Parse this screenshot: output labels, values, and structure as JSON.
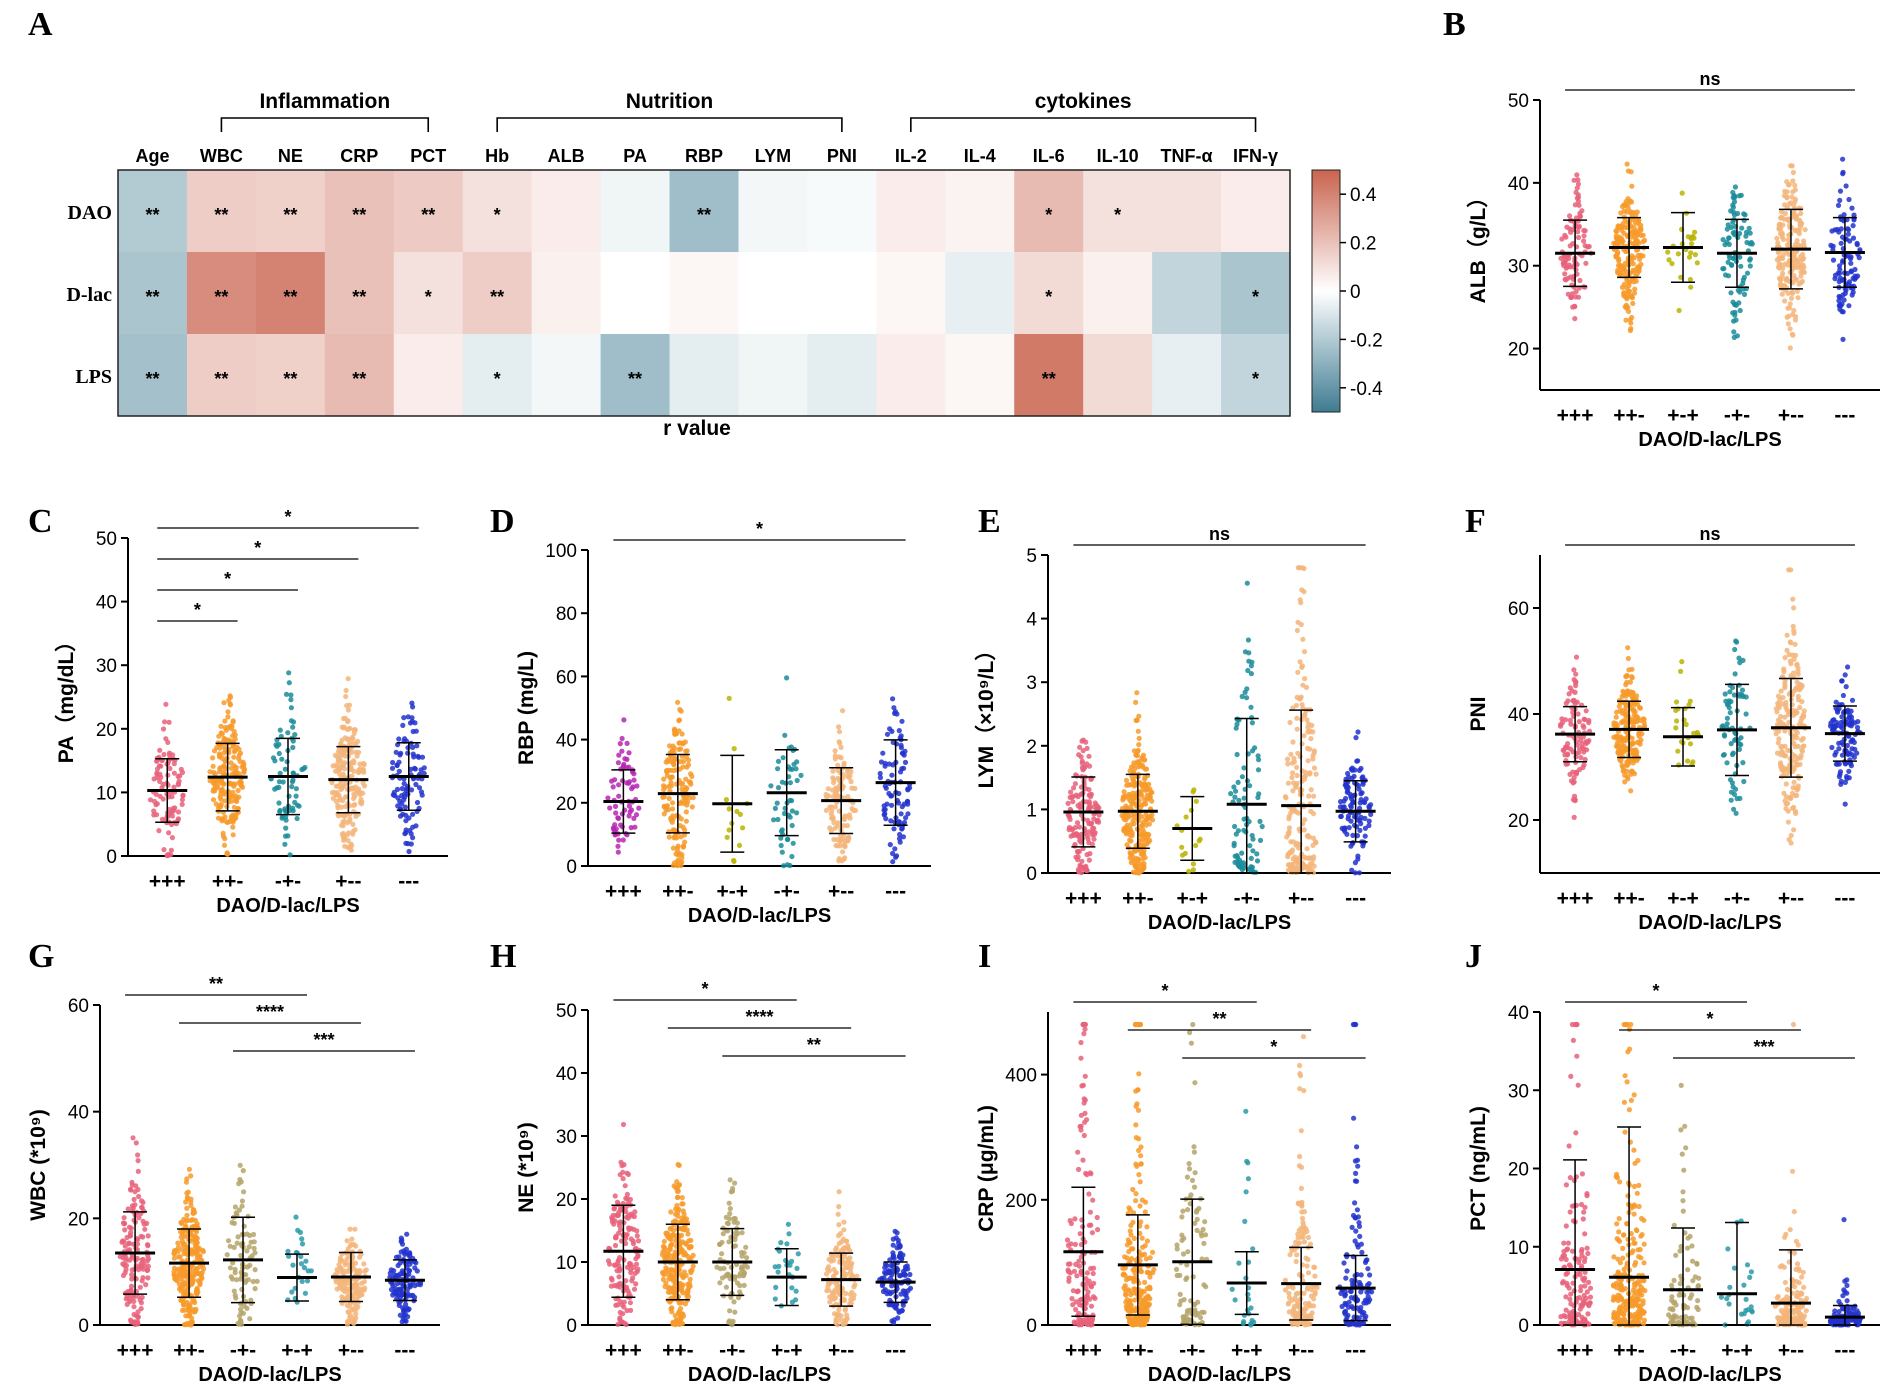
{
  "figure_labels": [
    "A",
    "B",
    "C",
    "D",
    "E",
    "F",
    "G",
    "H",
    "I",
    "J"
  ],
  "colors": {
    "+++": "#e8627a",
    "++-": "#f79a2a",
    "+-+": "#b8b400",
    "-+-": "#1a8c9a",
    "+--": "#f3b57a",
    "---": "#2233cc",
    "+++_D": "#b527b0",
    "+-+_G": "#2a9aa8",
    "-+-_G": "#b5a46a",
    "+-+_H": "#2a9aa8",
    "-+-_H": "#b5a46a",
    "heat_pos": "#c9644f",
    "heat_neg": "#3f7c92"
  },
  "chart_data": [
    {
      "panel": "A",
      "type": "heatmap",
      "xlabel": "r value",
      "columns": [
        "Age",
        "WBC",
        "NE",
        "CRP",
        "PCT",
        "Hb",
        "ALB",
        "PA",
        "RBP",
        "LYM",
        "PNI",
        "IL-2",
        "IL-4",
        "IL-6",
        "IL-10",
        "TNF-α",
        "IFN-γ"
      ],
      "rows": [
        "DAO",
        "D-lac",
        "LPS"
      ],
      "groups": [
        {
          "label": "Inflammation",
          "from": 1,
          "to": 4
        },
        {
          "label": "Nutrition",
          "from": 5,
          "to": 10
        },
        {
          "label": "cytokines",
          "from": 11,
          "to": 16
        }
      ],
      "values": [
        [
          -0.2,
          0.16,
          0.15,
          0.2,
          0.17,
          0.1,
          0.06,
          -0.04,
          -0.25,
          -0.03,
          -0.02,
          0.06,
          0.04,
          0.22,
          0.1,
          0.1,
          0.06
        ],
        [
          -0.22,
          0.37,
          0.4,
          0.2,
          0.1,
          0.16,
          0.05,
          0.0,
          0.03,
          0.0,
          0.0,
          0.03,
          -0.06,
          0.12,
          0.05,
          -0.16,
          -0.22
        ],
        [
          -0.24,
          0.16,
          0.15,
          0.22,
          0.06,
          -0.07,
          -0.03,
          -0.25,
          -0.07,
          -0.04,
          -0.07,
          0.06,
          0.03,
          0.43,
          0.12,
          -0.06,
          -0.16
        ]
      ],
      "stars": [
        [
          "**",
          "**",
          "**",
          "**",
          "**",
          "*",
          "",
          "",
          "**",
          "",
          "",
          "",
          "",
          "*",
          "*",
          "",
          ""
        ],
        [
          "**",
          "**",
          "**",
          "**",
          "*",
          "**",
          "",
          "",
          "",
          "",
          "",
          "",
          "",
          "*",
          "",
          "",
          "*"
        ],
        [
          "**",
          "**",
          "**",
          "**",
          "",
          "*",
          "",
          "**",
          "",
          "",
          "",
          "",
          "",
          "**",
          "",
          "",
          "*"
        ]
      ],
      "colorbar": {
        "range": [
          -0.5,
          0.5
        ],
        "ticks": [
          "0.4",
          "0.2",
          "0",
          "-0.2",
          "-0.4"
        ]
      }
    },
    {
      "panel": "B",
      "type": "scatter",
      "ylabel": "ALB（g/L）",
      "xlabel": "DAO/D-lac/LPS",
      "ylim": [
        15,
        50
      ],
      "yticks": [
        20,
        30,
        40,
        50
      ],
      "categories": [
        "+++",
        "++-",
        "+-+",
        "-+-",
        "+--",
        "---"
      ],
      "mean": [
        31.5,
        32.2,
        32.2,
        31.5,
        32.0,
        31.6
      ],
      "sd": [
        4.0,
        3.6,
        4.2,
        4.1,
        4.8,
        4.2
      ],
      "n": [
        100,
        200,
        25,
        90,
        200,
        100
      ],
      "brackets": [
        {
          "from": 0,
          "to": 5,
          "label": "ns"
        }
      ]
    },
    {
      "panel": "C",
      "type": "scatter",
      "ylabel": "PA（mg/dL）",
      "xlabel": "DAO/D-lac/LPS",
      "ylim": [
        0,
        50
      ],
      "yticks": [
        0,
        10,
        20,
        30,
        40,
        50
      ],
      "categories": [
        "+++",
        "++-",
        "-+-",
        "+--",
        "---"
      ],
      "mean": [
        10.3,
        12.4,
        12.5,
        12.0,
        12.5
      ],
      "sd": [
        5.0,
        5.3,
        6.0,
        5.2,
        5.3
      ],
      "n": [
        100,
        200,
        70,
        200,
        100
      ],
      "brackets": [
        {
          "from": 0,
          "to": 4,
          "label": "*"
        },
        {
          "from": 0,
          "to": 3,
          "label": "*"
        },
        {
          "from": 0,
          "to": 2,
          "label": "*"
        },
        {
          "from": 0,
          "to": 1,
          "label": "*"
        }
      ]
    },
    {
      "panel": "D",
      "type": "scatter",
      "ylabel": "RBP (mg/L)",
      "xlabel": "DAO/D-lac/LPS",
      "ylim": [
        0,
        100
      ],
      "yticks": [
        0,
        20,
        40,
        60,
        80,
        100
      ],
      "categories": [
        "+++",
        "++-",
        "+-+",
        "-+-",
        "+--",
        "---"
      ],
      "mean": [
        20.4,
        22.9,
        19.7,
        23.2,
        20.7,
        26.4
      ],
      "sd": [
        10.0,
        12.4,
        15.3,
        13.6,
        10.4,
        13.5
      ],
      "n": [
        70,
        160,
        14,
        50,
        120,
        90
      ],
      "brackets": [
        {
          "from": 0,
          "to": 5,
          "label": "*"
        }
      ]
    },
    {
      "panel": "E",
      "type": "scatter",
      "ylabel": "LYM（×10⁹/L）",
      "xlabel": "DAO/D-lac/LPS",
      "ylim": [
        0,
        5
      ],
      "yticks": [
        0,
        1,
        2,
        3,
        4,
        5
      ],
      "categories": [
        "+++",
        "++-",
        "+-+",
        "-+-",
        "+--",
        "---"
      ],
      "mean": [
        0.96,
        0.97,
        0.7,
        1.08,
        1.06,
        0.97
      ],
      "sd": [
        0.55,
        0.58,
        0.5,
        1.35,
        1.5,
        0.48
      ],
      "n": [
        150,
        250,
        16,
        90,
        200,
        110
      ],
      "brackets": [
        {
          "from": 0,
          "to": 5,
          "label": "ns"
        }
      ]
    },
    {
      "panel": "F",
      "type": "scatter",
      "ylabel": "PNI",
      "xlabel": "DAO/D-lac/LPS",
      "ylim": [
        10,
        70
      ],
      "yticks": [
        20,
        40,
        60
      ],
      "categories": [
        "+++",
        "++-",
        "+-+",
        "-+-",
        "+--",
        "---"
      ],
      "mean": [
        36.2,
        37.1,
        35.7,
        37.0,
        37.4,
        36.3
      ],
      "sd": [
        5.2,
        5.3,
        5.5,
        8.6,
        9.3,
        5.2
      ],
      "n": [
        100,
        200,
        25,
        70,
        200,
        110
      ],
      "brackets": [
        {
          "from": 0,
          "to": 5,
          "label": "ns"
        }
      ]
    },
    {
      "panel": "G",
      "type": "scatter",
      "ylabel": "WBC (*10⁹)",
      "xlabel": "DAO/D-lac/LPS",
      "ylim": [
        0,
        60
      ],
      "yticks": [
        0,
        20,
        40,
        60
      ],
      "categories": [
        "+++",
        "++-",
        "-+-",
        "+-+",
        "+--",
        "---"
      ],
      "mean": [
        13.5,
        11.6,
        12.2,
        8.9,
        9.0,
        8.4
      ],
      "sd": [
        7.7,
        6.4,
        8.0,
        4.4,
        4.6,
        3.8
      ],
      "n": [
        150,
        250,
        90,
        25,
        150,
        120
      ],
      "brackets": [
        {
          "from": 0,
          "to": 3,
          "label": "**"
        },
        {
          "from": 1,
          "to": 4,
          "label": "****"
        },
        {
          "from": 2,
          "to": 5,
          "label": "***"
        }
      ]
    },
    {
      "panel": "H",
      "type": "scatter",
      "ylabel": "NE (*10⁹)",
      "xlabel": "DAO/D-lac/LPS",
      "ylim": [
        0,
        50
      ],
      "yticks": [
        0,
        10,
        20,
        30,
        40,
        50
      ],
      "categories": [
        "+++",
        "++-",
        "-+-",
        "+-+",
        "+--",
        "---"
      ],
      "mean": [
        11.7,
        10.0,
        10.0,
        7.6,
        7.2,
        6.8
      ],
      "sd": [
        7.3,
        6.0,
        5.3,
        4.5,
        4.2,
        3.2
      ],
      "n": [
        150,
        250,
        90,
        25,
        150,
        120
      ],
      "brackets": [
        {
          "from": 0,
          "to": 3,
          "label": "*"
        },
        {
          "from": 1,
          "to": 4,
          "label": "****"
        },
        {
          "from": 2,
          "to": 5,
          "label": "**"
        }
      ]
    },
    {
      "panel": "I",
      "type": "scatter",
      "ylabel": "CRP (μg/mL)",
      "xlabel": "DAO/D-lac/LPS",
      "ylim": [
        0,
        500
      ],
      "yticks": [
        0,
        200,
        400
      ],
      "categories": [
        "+++",
        "++-",
        "-+-",
        "+-+",
        "+--",
        "---"
      ],
      "mean": [
        117,
        96,
        101,
        67,
        66,
        59
      ],
      "sd": [
        103,
        80,
        100,
        50,
        58,
        52
      ],
      "n": [
        150,
        250,
        90,
        25,
        150,
        120
      ],
      "brackets": [
        {
          "from": 0,
          "to": 3,
          "label": "*"
        },
        {
          "from": 1,
          "to": 4,
          "label": "**"
        },
        {
          "from": 2,
          "to": 5,
          "label": "*"
        }
      ]
    },
    {
      "panel": "J",
      "type": "scatter",
      "ylabel": "PCT (ng/mL)",
      "xlabel": "DAO/D-lac/LPS",
      "ylim": [
        0,
        40
      ],
      "yticks": [
        0,
        10,
        20,
        30,
        40
      ],
      "categories": [
        "+++",
        "++-",
        "-+-",
        "+-+",
        "+--",
        "---"
      ],
      "mean": [
        7.1,
        6.1,
        4.5,
        4.0,
        2.8,
        1.0
      ],
      "sd": [
        14.0,
        19.2,
        7.9,
        9.1,
        6.8,
        1.5
      ],
      "n": [
        150,
        250,
        90,
        25,
        150,
        120
      ],
      "brackets": [
        {
          "from": 0,
          "to": 3,
          "label": "*"
        },
        {
          "from": 1,
          "to": 4,
          "label": "*"
        },
        {
          "from": 2,
          "to": 5,
          "label": "***"
        }
      ]
    }
  ]
}
